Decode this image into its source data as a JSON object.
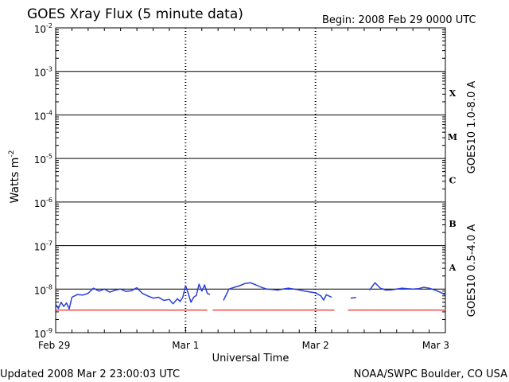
{
  "header": {
    "title": "GOES Xray Flux (5 minute data)",
    "begin": "Begin:  2008 Feb 29 0000 UTC"
  },
  "footer": {
    "updated": "Updated 2008 Mar  2 23:00:03 UTC",
    "credit": "NOAA/SWPC Boulder, CO USA"
  },
  "colors": {
    "long": "#e8292b",
    "short": "#2a3fd8",
    "axis": "#000000"
  },
  "chart_data": {
    "type": "line",
    "title": "GOES Xray Flux (5 minute data)",
    "xlabel": "Universal Time",
    "ylabel": "Watts m-2",
    "ylabel_main": "Watts m",
    "ylabel_sup": "-2",
    "yscale": "log",
    "ylim": [
      1e-09,
      0.01
    ],
    "yticks": [
      {
        "base": "10",
        "exp": "-2"
      },
      {
        "base": "10",
        "exp": "-3"
      },
      {
        "base": "10",
        "exp": "-4"
      },
      {
        "base": "10",
        "exp": "-5"
      },
      {
        "base": "10",
        "exp": "-6"
      },
      {
        "base": "10",
        "exp": "-7"
      },
      {
        "base": "10",
        "exp": "-8"
      },
      {
        "base": "10",
        "exp": "-9"
      }
    ],
    "xlim": [
      "2008-02-29T00:00",
      "2008-03-03T00:00"
    ],
    "xticks": [
      "Feb 29",
      "Mar 1",
      "Mar 2",
      "Mar 3"
    ],
    "flare_classes": [
      {
        "label": "X",
        "flux": 0.0001
      },
      {
        "label": "M",
        "flux": 1e-05
      },
      {
        "label": "C",
        "flux": 1e-06
      },
      {
        "label": "B",
        "flux": 1e-07
      },
      {
        "label": "A",
        "flux": 1e-08
      }
    ],
    "grid": true,
    "series": [
      {
        "name": "GOES10 1.0-8.0 A",
        "color": "#e8292b",
        "segments": [
          [
            [
              "2008-02-29T00:00",
              3.3e-09
            ],
            [
              "2008-02-29T14:00",
              3.3e-09
            ],
            [
              "2008-03-01T04:00",
              3.3e-09
            ]
          ],
          [
            [
              "2008-03-01T05:00",
              3.3e-09
            ],
            [
              "2008-03-01T14:00",
              3.3e-09
            ],
            [
              "2008-03-02T03:30",
              3.3e-09
            ]
          ],
          [
            [
              "2008-03-02T06:00",
              3.3e-09
            ],
            [
              "2008-03-02T15:00",
              3.3e-09
            ],
            [
              "2008-03-03T00:00",
              3.3e-09
            ]
          ]
        ]
      },
      {
        "name": "GOES10 0.5-4.0 A",
        "color": "#2a3fd8",
        "segments": [
          [
            [
              "2008-02-29T00:00",
              4.5e-09
            ],
            [
              "2008-02-29T00:30",
              3.6e-09
            ],
            [
              "2008-02-29T01:00",
              5e-09
            ],
            [
              "2008-02-29T01:30",
              4e-09
            ],
            [
              "2008-02-29T02:00",
              4.8e-09
            ],
            [
              "2008-02-29T02:30",
              3.5e-09
            ],
            [
              "2008-02-29T03:00",
              6.5e-09
            ],
            [
              "2008-02-29T03:30",
              7e-09
            ],
            [
              "2008-02-29T04:00",
              7.5e-09
            ],
            [
              "2008-02-29T05:00",
              7.3e-09
            ],
            [
              "2008-02-29T06:00",
              8e-09
            ],
            [
              "2008-02-29T07:00",
              1.05e-08
            ],
            [
              "2008-02-29T08:00",
              9e-09
            ],
            [
              "2008-02-29T09:00",
              1e-08
            ],
            [
              "2008-02-29T10:00",
              8.5e-09
            ],
            [
              "2008-02-29T11:00",
              9.5e-09
            ],
            [
              "2008-02-29T12:00",
              1e-08
            ],
            [
              "2008-02-29T13:00",
              8.8e-09
            ],
            [
              "2008-02-29T14:00",
              9.2e-09
            ],
            [
              "2008-02-29T15:00",
              1.08e-08
            ],
            [
              "2008-02-29T16:00",
              8e-09
            ],
            [
              "2008-02-29T17:00",
              7e-09
            ],
            [
              "2008-02-29T18:00",
              6.2e-09
            ],
            [
              "2008-02-29T19:00",
              6.5e-09
            ],
            [
              "2008-02-29T20:00",
              5.5e-09
            ],
            [
              "2008-02-29T21:00",
              5.8e-09
            ],
            [
              "2008-02-29T21:40",
              4.6e-09
            ],
            [
              "2008-02-29T22:30",
              6e-09
            ],
            [
              "2008-02-29T23:00",
              5.2e-09
            ],
            [
              "2008-02-29T23:30",
              6.5e-09
            ],
            [
              "2008-03-01T00:00",
              1.2e-08
            ],
            [
              "2008-03-01T00:30",
              8e-09
            ],
            [
              "2008-03-01T01:00",
              5e-09
            ],
            [
              "2008-03-01T01:30",
              6.5e-09
            ],
            [
              "2008-03-01T02:00",
              7.2e-09
            ],
            [
              "2008-03-01T02:30",
              1.3e-08
            ],
            [
              "2008-03-01T03:00",
              9e-09
            ],
            [
              "2008-03-01T03:30",
              1.25e-08
            ],
            [
              "2008-03-01T04:00",
              8e-09
            ],
            [
              "2008-03-01T04:30",
              7.5e-09
            ]
          ],
          [
            [
              "2008-03-01T07:00",
              5.5e-09
            ],
            [
              "2008-03-01T08:00",
              1e-08
            ],
            [
              "2008-03-01T09:00",
              1.1e-08
            ],
            [
              "2008-03-01T10:00",
              1.2e-08
            ],
            [
              "2008-03-01T11:00",
              1.35e-08
            ],
            [
              "2008-03-01T12:00",
              1.4e-08
            ],
            [
              "2008-03-01T13:00",
              1.25e-08
            ],
            [
              "2008-03-01T14:00",
              1.1e-08
            ],
            [
              "2008-03-01T15:00",
              1e-08
            ],
            [
              "2008-03-01T16:00",
              9.8e-09
            ],
            [
              "2008-03-01T17:00",
              9.5e-09
            ],
            [
              "2008-03-01T18:00",
              1e-08
            ],
            [
              "2008-03-01T19:00",
              1.05e-08
            ],
            [
              "2008-03-01T20:00",
              1e-08
            ],
            [
              "2008-03-01T21:00",
              9.6e-09
            ],
            [
              "2008-03-01T22:00",
              9e-09
            ],
            [
              "2008-03-01T23:00",
              8.6e-09
            ],
            [
              "2008-03-02T00:00",
              8.2e-09
            ],
            [
              "2008-03-02T01:00",
              7e-09
            ],
            [
              "2008-03-02T01:30",
              5.6e-09
            ],
            [
              "2008-03-02T02:00",
              7.4e-09
            ],
            [
              "2008-03-02T03:00",
              6.5e-09
            ]
          ],
          [
            [
              "2008-03-02T06:30",
              6.2e-09
            ],
            [
              "2008-03-02T07:30",
              6.4e-09
            ]
          ],
          [
            [
              "2008-03-02T10:00",
              9.5e-09
            ],
            [
              "2008-03-02T11:00",
              1.4e-08
            ],
            [
              "2008-03-02T12:00",
              1.05e-08
            ],
            [
              "2008-03-02T13:00",
              9.5e-09
            ],
            [
              "2008-03-02T14:00",
              9.6e-09
            ],
            [
              "2008-03-02T15:00",
              1e-08
            ],
            [
              "2008-03-02T16:00",
              1.05e-08
            ],
            [
              "2008-03-02T17:00",
              1.02e-08
            ],
            [
              "2008-03-02T18:00",
              1e-08
            ],
            [
              "2008-03-02T19:00",
              1.02e-08
            ],
            [
              "2008-03-02T20:00",
              1.1e-08
            ],
            [
              "2008-03-02T21:00",
              1.05e-08
            ],
            [
              "2008-03-02T22:00",
              9.6e-09
            ],
            [
              "2008-03-02T23:00",
              8.5e-09
            ],
            [
              "2008-03-03T00:00",
              7.4e-09
            ]
          ]
        ]
      }
    ]
  }
}
